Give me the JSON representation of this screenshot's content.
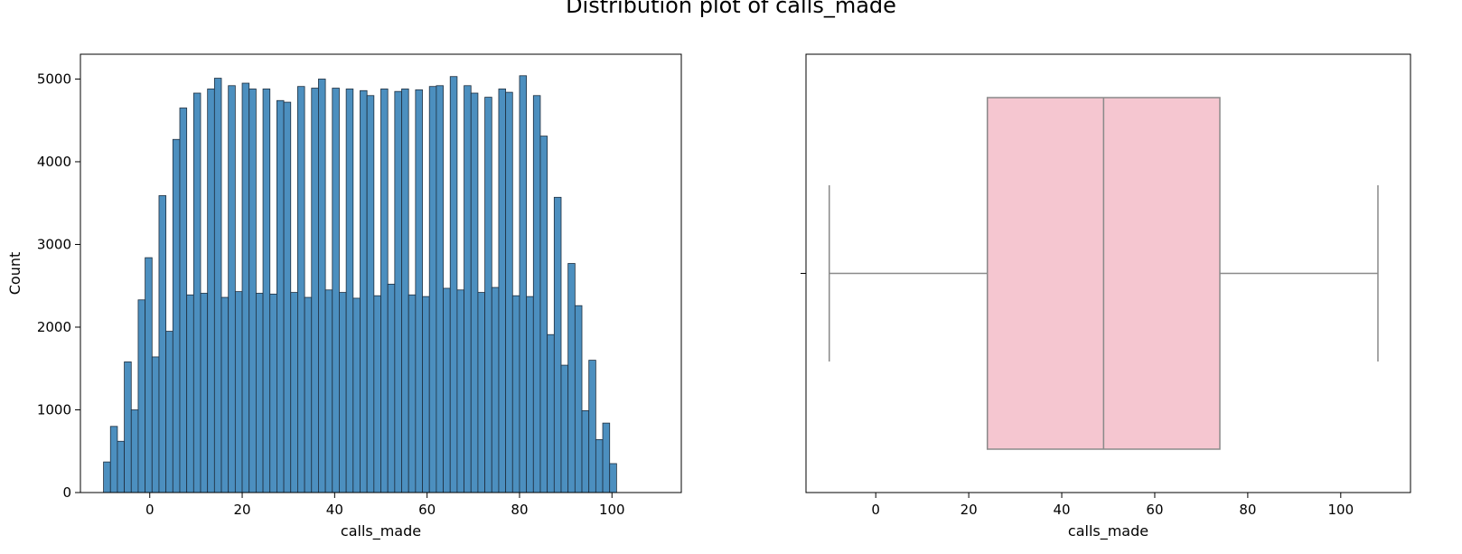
{
  "figure_title": "Distribution plot of calls_made",
  "colors": {
    "bar_fill": "#4c8fbf",
    "bar_edge": "#1f2f3f",
    "box_fill": "#f5c6d0",
    "box_line": "#8a8a8a"
  },
  "chart_data": [
    {
      "type": "bar",
      "subtype": "histogram",
      "title": "",
      "xlabel": "calls_made",
      "ylabel": "Count",
      "xlim": [
        -15,
        115
      ],
      "ylim": [
        0,
        5300
      ],
      "xticks": [
        0,
        20,
        40,
        60,
        80,
        100
      ],
      "yticks": [
        0,
        1000,
        2000,
        3000,
        4000,
        5000
      ],
      "bin_start": -10,
      "bin_width": 1.5,
      "values": [
        370,
        800,
        620,
        1580,
        1000,
        2330,
        2840,
        1640,
        3590,
        1950,
        4270,
        4650,
        2390,
        4830,
        2410,
        4880,
        5010,
        2360,
        4920,
        2430,
        4950,
        4880,
        2410,
        4880,
        2400,
        4740,
        4720,
        2420,
        4910,
        2360,
        4890,
        5000,
        2450,
        4890,
        2420,
        4880,
        2350,
        4860,
        4800,
        2380,
        4880,
        2520,
        4850,
        4880,
        2390,
        4870,
        2370,
        4910,
        4920,
        2470,
        5030,
        2450,
        4920,
        4830,
        2420,
        4780,
        2480,
        4880,
        4840,
        2380,
        5040,
        2370,
        4800,
        4310,
        1910,
        3570,
        1540,
        2770,
        2260,
        990,
        1600,
        640,
        840,
        350
      ],
      "grid": false
    },
    {
      "type": "boxplot",
      "title": "",
      "xlabel": "calls_made",
      "xlim": [
        -15,
        115
      ],
      "xticks": [
        0,
        20,
        40,
        60,
        80,
        100
      ],
      "whisker_low": -10,
      "q1": 24,
      "median": 49,
      "q3": 74,
      "whisker_high": 108,
      "grid": false
    }
  ]
}
